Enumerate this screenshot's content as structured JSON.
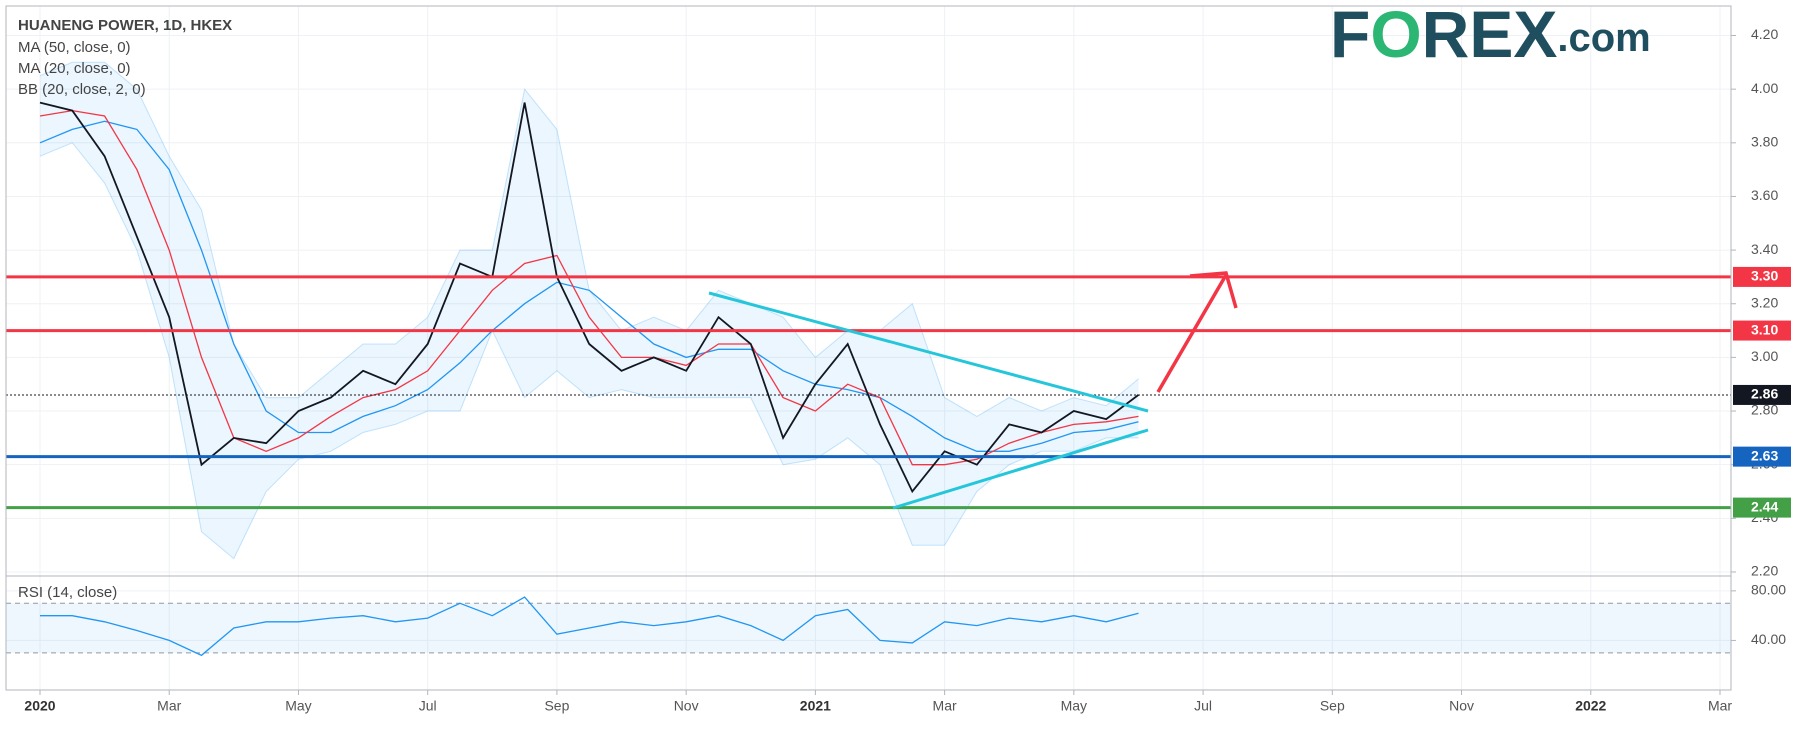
{
  "chart_data": [
    {
      "type": "line",
      "title": "HUANENG POWER, 1D, HKEX",
      "logo": [
        "F",
        "O",
        "REX",
        ".com"
      ],
      "categories": [
        "2020",
        null,
        null,
        null,
        "Mar",
        null,
        null,
        null,
        "May",
        null,
        null,
        null,
        "Jul",
        null,
        null,
        null,
        "Sep",
        null,
        null,
        null,
        "Nov",
        null,
        null,
        null,
        "2021",
        null,
        null,
        null,
        "Mar",
        null,
        null,
        null,
        "May",
        null,
        null,
        null,
        "Jul",
        null,
        null,
        null,
        "Sep",
        null,
        null,
        null,
        "Nov",
        null,
        null,
        null,
        "2022",
        null,
        null,
        null,
        "Mar"
      ],
      "values": [
        3.95,
        3.92,
        3.75,
        3.45,
        3.15,
        2.6,
        2.7,
        2.68,
        2.8,
        2.85,
        2.95,
        2.9,
        3.05,
        3.35,
        3.3,
        3.95,
        3.3,
        3.05,
        2.95,
        3.0,
        2.95,
        3.15,
        3.05,
        2.7,
        2.9,
        3.05,
        2.75,
        2.5,
        2.65,
        2.6,
        2.75,
        2.72,
        2.8,
        2.77,
        2.86,
        null,
        null,
        null,
        null,
        null,
        null,
        null,
        null,
        null,
        null,
        null,
        null,
        null,
        null,
        null,
        null,
        null,
        null
      ],
      "color": "#131722",
      "series": [
        {
          "name": "MA (50, close, 0)",
          "color": "#2196f3",
          "values": [
            3.8,
            3.85,
            3.88,
            3.85,
            3.7,
            3.4,
            3.05,
            2.8,
            2.72,
            2.72,
            2.78,
            2.82,
            2.88,
            2.98,
            3.1,
            3.2,
            3.28,
            3.25,
            3.15,
            3.05,
            3.0,
            3.03,
            3.03,
            2.95,
            2.9,
            2.88,
            2.85,
            2.78,
            2.7,
            2.65,
            2.65,
            2.68,
            2.72,
            2.73,
            2.76,
            null,
            null,
            null,
            null,
            null,
            null,
            null,
            null,
            null,
            null,
            null,
            null,
            null,
            null,
            null,
            null,
            null,
            null
          ]
        },
        {
          "name": "MA (20, close, 0)",
          "color": "#f23645",
          "values": [
            3.9,
            3.92,
            3.9,
            3.7,
            3.4,
            3.0,
            2.7,
            2.65,
            2.7,
            2.78,
            2.85,
            2.88,
            2.95,
            3.1,
            3.25,
            3.35,
            3.38,
            3.15,
            3.0,
            3.0,
            2.97,
            3.05,
            3.05,
            2.85,
            2.8,
            2.9,
            2.85,
            2.6,
            2.6,
            2.62,
            2.68,
            2.72,
            2.75,
            2.76,
            2.78,
            null,
            null,
            null,
            null,
            null,
            null,
            null,
            null,
            null,
            null,
            null,
            null,
            null,
            null,
            null,
            null,
            null,
            null
          ]
        }
      ],
      "bands": {
        "name": "BB (20, close, 2, 0)",
        "color": "#2196f3",
        "upper": [
          4.05,
          4.1,
          4.1,
          4.0,
          3.75,
          3.55,
          3.05,
          2.85,
          2.85,
          2.95,
          3.05,
          3.05,
          3.15,
          3.4,
          3.4,
          4.0,
          3.85,
          3.25,
          3.1,
          3.15,
          3.1,
          3.25,
          3.2,
          3.15,
          3.0,
          3.1,
          3.1,
          3.2,
          2.85,
          2.78,
          2.85,
          2.8,
          2.85,
          2.82,
          2.92,
          null,
          null,
          null,
          null,
          null,
          null,
          null,
          null,
          null,
          null,
          null,
          null,
          null,
          null,
          null,
          null,
          null,
          null
        ],
        "lower": [
          3.75,
          3.8,
          3.65,
          3.4,
          3.0,
          2.35,
          2.25,
          2.5,
          2.62,
          2.65,
          2.72,
          2.75,
          2.8,
          2.8,
          3.1,
          2.85,
          2.95,
          2.85,
          2.88,
          2.85,
          2.85,
          2.85,
          2.85,
          2.6,
          2.62,
          2.7,
          2.6,
          2.3,
          2.3,
          2.5,
          2.6,
          2.65,
          2.65,
          2.7,
          2.7,
          null,
          null,
          null,
          null,
          null,
          null,
          null,
          null,
          null,
          null,
          null,
          null,
          null,
          null,
          null,
          null,
          null,
          null
        ]
      },
      "levels": [
        {
          "value": 3.3,
          "label": "3.30",
          "color": "#f23645"
        },
        {
          "value": 3.1,
          "label": "3.10",
          "color": "#f23645"
        },
        {
          "value": 2.86,
          "label": "2.86",
          "color": "#131722",
          "dotted": true
        },
        {
          "value": 2.63,
          "label": "2.63",
          "color": "#1565c0"
        },
        {
          "value": 2.44,
          "label": "2.44",
          "color": "#43a047"
        }
      ],
      "ylim": [
        2.185,
        4.31
      ],
      "yticks": [
        {
          "value": 2.2,
          "label": "2.20"
        },
        {
          "value": 2.4,
          "label": "2.40"
        },
        {
          "value": 2.6,
          "label": "2.60"
        },
        {
          "value": 2.8,
          "label": "2.80"
        },
        {
          "value": 3.0,
          "label": "3.00"
        },
        {
          "value": 3.2,
          "label": "3.20"
        },
        {
          "value": 3.4,
          "label": "3.40"
        },
        {
          "value": 3.6,
          "label": "3.60"
        },
        {
          "value": 3.8,
          "label": "3.80"
        },
        {
          "value": 4.0,
          "label": "4.00"
        },
        {
          "value": 4.2,
          "label": "4.20"
        }
      ],
      "grid": true
    },
    {
      "type": "line",
      "title": "RSI (14, close)",
      "values": [
        60,
        60,
        55,
        48,
        40,
        28,
        50,
        55,
        55,
        58,
        60,
        55,
        58,
        70,
        60,
        75,
        45,
        50,
        55,
        52,
        55,
        60,
        52,
        40,
        60,
        65,
        40,
        38,
        55,
        52,
        58,
        55,
        60,
        55,
        62,
        null,
        null,
        null,
        null,
        null,
        null,
        null,
        null,
        null,
        null,
        null,
        null,
        null,
        null,
        null,
        null,
        null,
        null
      ],
      "color": "#2196f3",
      "band": [
        30,
        70
      ],
      "ylim": [
        0,
        92
      ],
      "yticks": [
        {
          "value": 40,
          "label": "40.00"
        },
        {
          "value": 80,
          "label": "80.00"
        }
      ],
      "grid": true
    }
  ]
}
